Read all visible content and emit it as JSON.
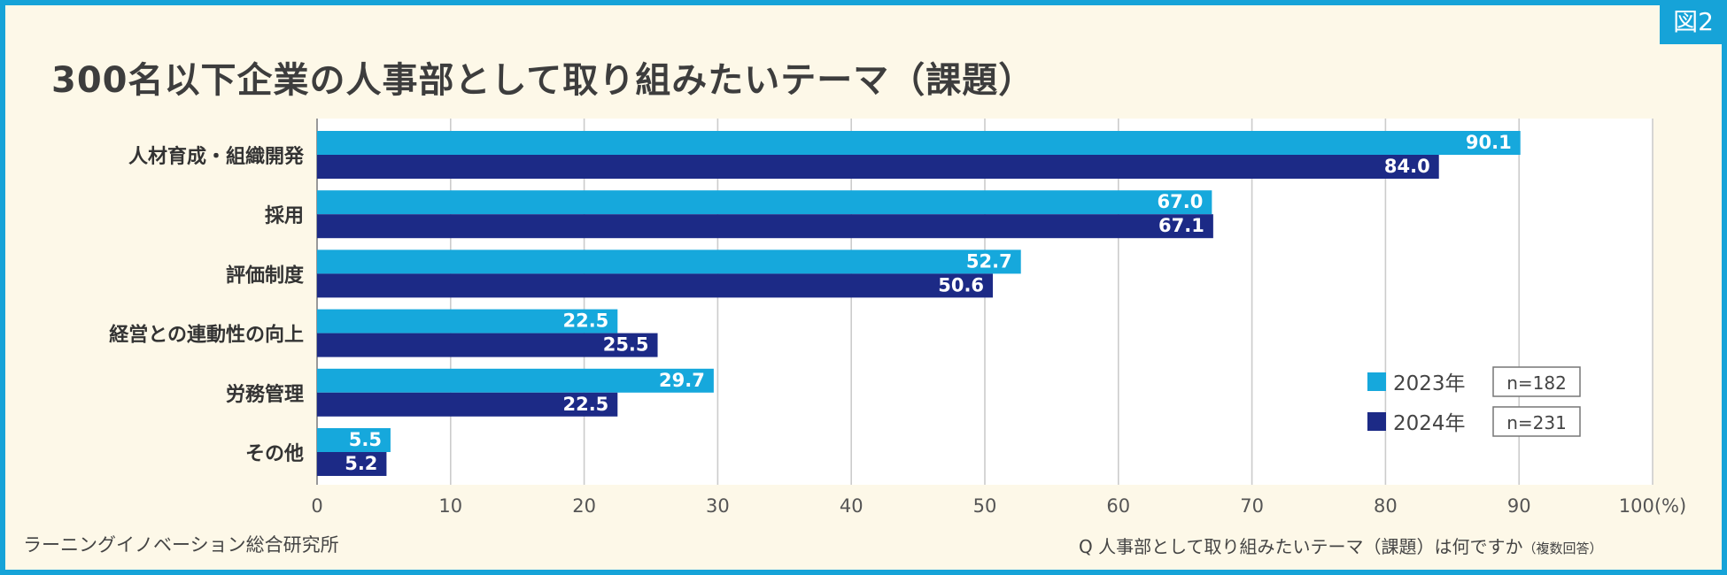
{
  "badge": "図2",
  "title": "300名以下企業の人事部として取り組みたいテーマ（課題）",
  "chart_data": {
    "type": "bar",
    "orientation": "horizontal",
    "categories": [
      "人材育成・組織開発",
      "採用",
      "評価制度",
      "経営との連動性の向上",
      "労務管理",
      "その他"
    ],
    "series": [
      {
        "name": "2023年",
        "n_label": "n=182",
        "color": "#16a8dc",
        "values": [
          90.1,
          67.0,
          52.7,
          22.5,
          29.7,
          5.5
        ],
        "labels": [
          "90.1",
          "67.0",
          "52.7",
          "22.5",
          "29.7",
          "5.5"
        ]
      },
      {
        "name": "2024年",
        "n_label": "n=231",
        "color": "#1c2a86",
        "values": [
          84.0,
          67.1,
          50.6,
          25.5,
          22.5,
          5.2
        ],
        "labels": [
          "84.0",
          "67.1",
          "50.6",
          "25.5",
          "22.5",
          "5.2"
        ]
      }
    ],
    "xlim": [
      0,
      100
    ],
    "xticks": [
      0,
      10,
      20,
      30,
      40,
      50,
      60,
      70,
      80,
      90,
      100
    ],
    "xtick_labels": [
      "0",
      "10",
      "20",
      "30",
      "40",
      "50",
      "60",
      "70",
      "80",
      "90",
      "100(%)"
    ],
    "grid": true,
    "legend_position": "bottom-right"
  },
  "footer": {
    "source": "ラーニングイノベーション総合研究所",
    "question": "Q 人事部として取り組みたいテーマ（課題）は何ですか",
    "question_note": "（複数回答）"
  }
}
